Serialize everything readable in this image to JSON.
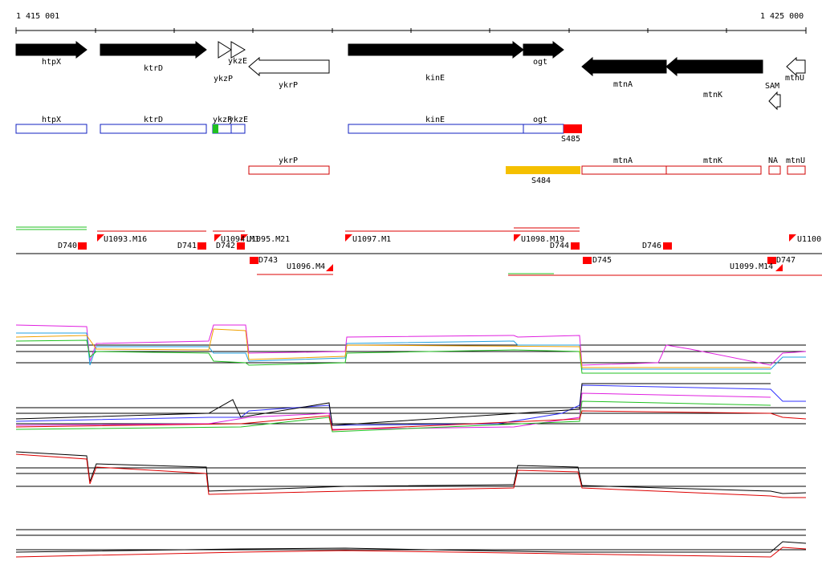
{
  "ruler": {
    "start": "1 415 001",
    "end": "1 425 000"
  },
  "genes": [
    "htpX",
    "ktrD",
    "ykzE",
    "ykzP",
    "ykrP",
    "kinE",
    "ogt",
    "mtnA",
    "mtnK",
    "SAM",
    "mtnU"
  ],
  "annotations_blue": [
    "htpX",
    "ktrD",
    "ykzP",
    "ykzE",
    "kinE",
    "ogt",
    "S485"
  ],
  "annotations_red": [
    "ykrP",
    "S484",
    "mtnA",
    "mtnK",
    "NA",
    "mtnU"
  ],
  "markers": [
    "D740",
    "U1093.M16",
    "D741",
    "D742",
    "U1094.M1",
    "U1095.M21",
    "D743",
    "U1096.M4",
    "U1097.M1",
    "U1098.M19",
    "D744",
    "D745",
    "D746",
    "U1099.M14",
    "D747",
    "U1100."
  ]
}
